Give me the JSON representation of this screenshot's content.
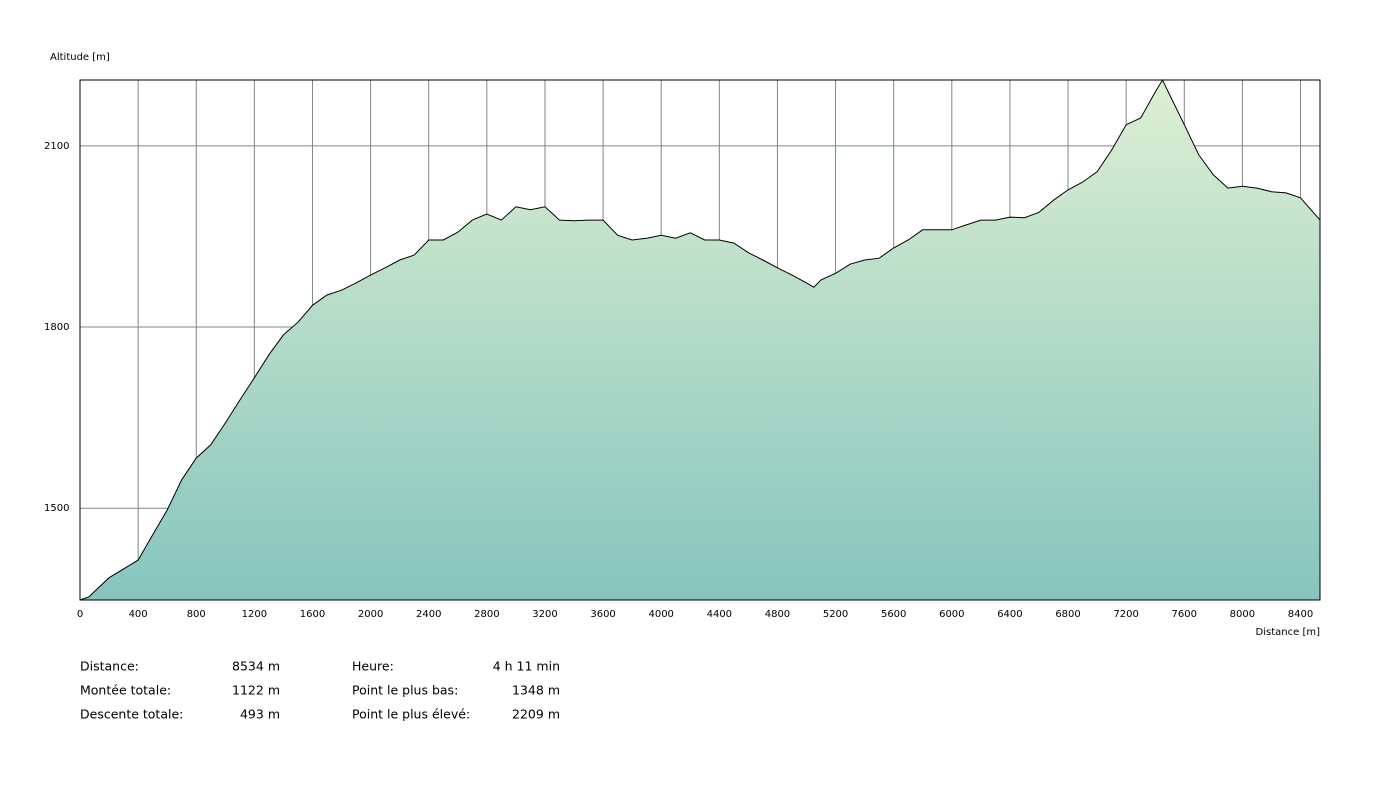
{
  "chart_data": {
    "type": "area",
    "y_label": "Altitude [m]",
    "x_label": "Distance [m]",
    "x": [
      0,
      60,
      200,
      400,
      500,
      600,
      700,
      800,
      900,
      1000,
      1100,
      1200,
      1300,
      1400,
      1500,
      1600,
      1700,
      1800,
      1900,
      2000,
      2100,
      2200,
      2300,
      2400,
      2500,
      2600,
      2700,
      2800,
      2900,
      3000,
      3100,
      3200,
      3300,
      3400,
      3500,
      3600,
      3700,
      3800,
      3900,
      4000,
      4100,
      4200,
      4300,
      4400,
      4500,
      4600,
      4700,
      4800,
      4900,
      5000,
      5050,
      5100,
      5200,
      5300,
      5400,
      5500,
      5600,
      5700,
      5800,
      5900,
      6000,
      6100,
      6200,
      6300,
      6400,
      6500,
      6600,
      6700,
      6800,
      6900,
      7000,
      7100,
      7200,
      7300,
      7400,
      7450,
      7500,
      7600,
      7700,
      7800,
      7900,
      8000,
      8100,
      8200,
      8300,
      8400,
      8534
    ],
    "values": [
      1348,
      1353,
      1385,
      1414,
      1456,
      1497,
      1547,
      1583,
      1605,
      1641,
      1679,
      1716,
      1754,
      1787,
      1808,
      1836,
      1853,
      1861,
      1873,
      1886,
      1898,
      1911,
      1919,
      1944,
      1944,
      1957,
      1977,
      1987,
      1977,
      1999,
      1994,
      1999,
      1977,
      1976,
      1977,
      1977,
      1952,
      1944,
      1947,
      1952,
      1947,
      1956,
      1944,
      1944,
      1939,
      1923,
      1911,
      1898,
      1886,
      1873,
      1866,
      1878,
      1889,
      1904,
      1911,
      1914,
      1931,
      1944,
      1961,
      1961,
      1961,
      1969,
      1977,
      1977,
      1982,
      1981,
      1990,
      2010,
      2027,
      2040,
      2057,
      2093,
      2135,
      2146,
      2189,
      2209,
      2184,
      2135,
      2085,
      2052,
      2030,
      2033,
      2030,
      2024,
      2022,
      2014,
      1977
    ],
    "color": "#000000",
    "xlim": [
      0,
      8534
    ],
    "ylim": [
      1348,
      2209
    ],
    "xticks": [
      0,
      400,
      800,
      1200,
      1600,
      2000,
      2400,
      2800,
      3200,
      3600,
      4000,
      4400,
      4800,
      5200,
      5600,
      6000,
      6400,
      6800,
      7200,
      7600,
      8000,
      8400
    ],
    "yticks": [
      1500,
      1800,
      2100
    ],
    "grid": true
  },
  "summary": [
    [
      {
        "label": "Distance:",
        "value": "8534 m"
      },
      {
        "label": "Heure:",
        "value": "4 h 11 min"
      }
    ],
    [
      {
        "label": "Montée totale:",
        "value": "1122 m"
      },
      {
        "label": "Point le plus bas:",
        "value": "1348 m"
      }
    ],
    [
      {
        "label": "Descente totale:",
        "value": "493 m"
      },
      {
        "label": "Point le plus élevé:",
        "value": "2209 m"
      }
    ]
  ]
}
